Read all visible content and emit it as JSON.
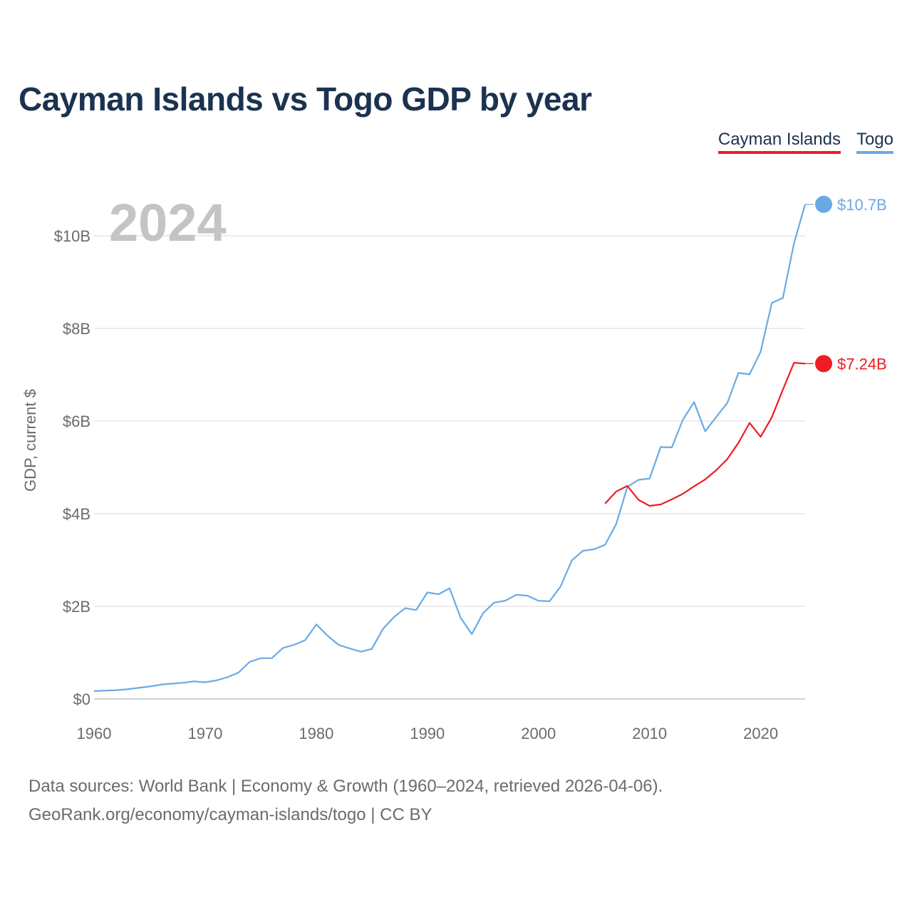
{
  "title": "Cayman Islands vs Togo GDP by year",
  "legend": [
    {
      "label": "Cayman Islands",
      "color": "#ee1c25"
    },
    {
      "label": "Togo",
      "color": "#6aaae4"
    }
  ],
  "chart_data": {
    "type": "line",
    "title": "Cayman Islands vs Togo GDP by year",
    "year_label": "2024",
    "ylabel": "GDP, current $",
    "xlabel": "",
    "xlim": [
      1960,
      2024
    ],
    "ylim": [
      0,
      10000000000
    ],
    "x_ticks": [
      {
        "value": 1960,
        "label": "1960"
      },
      {
        "value": 1970,
        "label": "1970"
      },
      {
        "value": 1980,
        "label": "1980"
      },
      {
        "value": 1990,
        "label": "1990"
      },
      {
        "value": 2000,
        "label": "2000"
      },
      {
        "value": 2010,
        "label": "2010"
      },
      {
        "value": 2020,
        "label": "2020"
      }
    ],
    "y_ticks": [
      {
        "value": 0,
        "label": "$0"
      },
      {
        "value": 2000000000,
        "label": "$2B"
      },
      {
        "value": 4000000000,
        "label": "$4B"
      },
      {
        "value": 6000000000,
        "label": "$6B"
      },
      {
        "value": 8000000000,
        "label": "$8B"
      },
      {
        "value": 10000000000,
        "label": "$10B"
      }
    ],
    "series": [
      {
        "name": "Togo",
        "color": "#6aaae4",
        "end_label": "$10.7B",
        "x": [
          1960,
          1961,
          1962,
          1963,
          1964,
          1965,
          1966,
          1967,
          1968,
          1969,
          1970,
          1971,
          1972,
          1973,
          1974,
          1975,
          1976,
          1977,
          1978,
          1979,
          1980,
          1981,
          1982,
          1983,
          1984,
          1985,
          1986,
          1987,
          1988,
          1989,
          1990,
          1991,
          1992,
          1993,
          1994,
          1995,
          1996,
          1997,
          1998,
          1999,
          2000,
          2001,
          2002,
          2003,
          2004,
          2005,
          2006,
          2007,
          2008,
          2009,
          2010,
          2011,
          2012,
          2013,
          2014,
          2015,
          2016,
          2017,
          2018,
          2019,
          2020,
          2021,
          2022,
          2023,
          2024
        ],
        "values": [
          170000000,
          180000000,
          190000000,
          210000000,
          240000000,
          270000000,
          310000000,
          330000000,
          350000000,
          380000000,
          360000000,
          400000000,
          470000000,
          570000000,
          800000000,
          880000000,
          880000000,
          1100000000,
          1170000000,
          1270000000,
          1610000000,
          1370000000,
          1170000000,
          1090000000,
          1020000000,
          1080000000,
          1510000000,
          1770000000,
          1960000000,
          1920000000,
          2300000000,
          2260000000,
          2390000000,
          1750000000,
          1400000000,
          1850000000,
          2080000000,
          2120000000,
          2250000000,
          2230000000,
          2120000000,
          2110000000,
          2430000000,
          2990000000,
          3200000000,
          3230000000,
          3330000000,
          3780000000,
          4580000000,
          4730000000,
          4760000000,
          5440000000,
          5430000000,
          6030000000,
          6410000000,
          5780000000,
          6090000000,
          6390000000,
          7040000000,
          7010000000,
          7500000000,
          8550000000,
          8660000000,
          9840000000,
          10680000000
        ]
      },
      {
        "name": "Cayman Islands",
        "color": "#ee1c25",
        "end_label": "$7.24B",
        "x": [
          2006,
          2007,
          2008,
          2009,
          2010,
          2011,
          2012,
          2013,
          2014,
          2015,
          2016,
          2017,
          2018,
          2019,
          2020,
          2021,
          2022,
          2023,
          2024
        ],
        "values": [
          4220000000,
          4480000000,
          4600000000,
          4300000000,
          4170000000,
          4200000000,
          4310000000,
          4430000000,
          4590000000,
          4740000000,
          4940000000,
          5180000000,
          5530000000,
          5960000000,
          5660000000,
          6080000000,
          6680000000,
          7260000000,
          7240000000
        ]
      }
    ]
  },
  "source": {
    "line1": "Data sources: World Bank | Economy & Growth (1960–2024, retrieved 2026-04-06).",
    "line2": "GeoRank.org/economy/cayman-islands/togo | CC BY"
  }
}
